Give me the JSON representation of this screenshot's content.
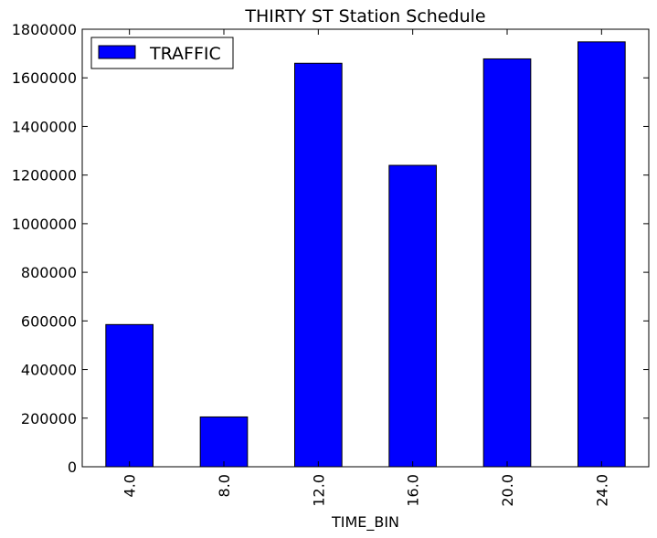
{
  "chart_data": {
    "type": "bar",
    "title": "THIRTY ST Station Schedule",
    "xlabel": "TIME_BIN",
    "ylabel": "",
    "categories": [
      "4.0",
      "8.0",
      "12.0",
      "16.0",
      "20.0",
      "24.0"
    ],
    "series": [
      {
        "name": "TRAFFIC",
        "values": [
          585000,
          205000,
          1660000,
          1240000,
          1678000,
          1748000
        ]
      }
    ],
    "ylim": [
      0,
      1800000
    ],
    "yticks": [
      0,
      200000,
      400000,
      600000,
      800000,
      1000000,
      1200000,
      1400000,
      1600000,
      1800000
    ],
    "bar_color": "#0000ff",
    "legend_position": "top-left",
    "grid": false
  }
}
